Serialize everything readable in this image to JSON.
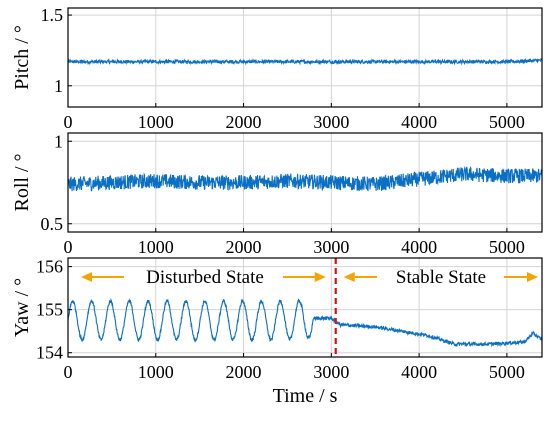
{
  "colors": {
    "series": "#0b6fc4",
    "grid": "#d4d4d4",
    "arrow": "#f5a300",
    "divider": "#e01010",
    "axis": "#000000"
  },
  "chart_data": [
    {
      "type": "line",
      "ylabel": "Pitch / °",
      "xlim": [
        0,
        5400
      ],
      "ylim": [
        0.85,
        1.55
      ],
      "xticks": [
        "0",
        "1000",
        "2000",
        "3000",
        "4000",
        "5000"
      ],
      "yticks": [
        "1",
        "1.5"
      ],
      "grid": true,
      "series": [
        {
          "x": [
            0,
            500,
            1000,
            1500,
            2000,
            2500,
            3000,
            3500,
            4000,
            4500,
            5000,
            5400
          ],
          "y": [
            1.17,
            1.17,
            1.17,
            1.17,
            1.17,
            1.17,
            1.17,
            1.17,
            1.17,
            1.17,
            1.17,
            1.18
          ],
          "noise": 0.012
        }
      ]
    },
    {
      "type": "line",
      "ylabel": "Roll / °",
      "xlim": [
        0,
        5400
      ],
      "ylim": [
        0.45,
        1.05
      ],
      "xticks": [
        "0",
        "1000",
        "2000",
        "3000",
        "4000",
        "5000"
      ],
      "yticks": [
        "0.5",
        "1"
      ],
      "grid": true,
      "series": [
        {
          "x": [
            0,
            500,
            1000,
            1500,
            2000,
            2500,
            3000,
            3500,
            4000,
            4500,
            5000,
            5400
          ],
          "y": [
            0.74,
            0.75,
            0.76,
            0.75,
            0.75,
            0.76,
            0.75,
            0.74,
            0.77,
            0.8,
            0.79,
            0.79
          ],
          "noise": 0.045
        }
      ]
    },
    {
      "type": "line",
      "ylabel": "Yaw / °",
      "xlabel": "Time / s",
      "xlim": [
        0,
        5400
      ],
      "ylim": [
        153.9,
        156.2
      ],
      "xticks": [
        "0",
        "1000",
        "2000",
        "3000",
        "4000",
        "5000"
      ],
      "yticks": [
        "154",
        "155",
        "156"
      ],
      "grid": true,
      "series": [
        {
          "x": [
            0,
            2600,
            2800,
            3000,
            3100,
            3500,
            3800,
            4100,
            4400,
            4800,
            5200,
            5300,
            5400
          ],
          "y": [
            154.75,
            154.75,
            154.8,
            154.8,
            154.65,
            154.6,
            154.5,
            154.4,
            154.2,
            154.2,
            154.25,
            154.45,
            154.3
          ],
          "oscillation": {
            "x_end": 2800,
            "amplitude": 0.45,
            "period": 215
          },
          "noise": 0.04
        }
      ],
      "divider_x": 3050,
      "annotations": {
        "disturbed": "Disturbed State",
        "stable": "Stable State"
      }
    }
  ]
}
